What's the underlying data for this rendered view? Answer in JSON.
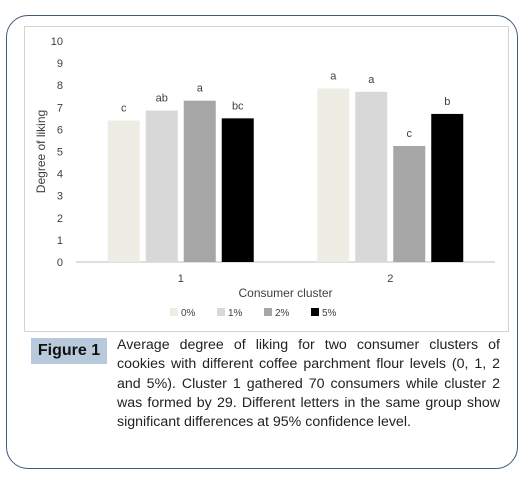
{
  "chart_data": {
    "type": "bar",
    "categories": [
      "1",
      "2"
    ],
    "series": [
      {
        "name": "0%",
        "color": "#eeede4",
        "values": [
          6.4,
          7.85
        ],
        "letters": [
          "c",
          "a"
        ]
      },
      {
        "name": "1%",
        "color": "#d8d8d8",
        "values": [
          6.85,
          7.7
        ],
        "letters": [
          "ab",
          "a"
        ]
      },
      {
        "name": "2%",
        "color": "#a6a6a6",
        "values": [
          7.3,
          5.25
        ],
        "letters": [
          "a",
          "c"
        ]
      },
      {
        "name": "5%",
        "color": "#000000",
        "values": [
          6.5,
          6.7
        ],
        "letters": [
          "bc",
          "b"
        ]
      }
    ],
    "xlabel": "Consumer cluster",
    "ylabel": "Degree of liking",
    "ylim": [
      0,
      10
    ],
    "yticks": [
      "0",
      "1",
      "2",
      "3",
      "4",
      "5",
      "6",
      "7",
      "8",
      "9",
      "10"
    ],
    "grid": false,
    "legend_position": "bottom"
  },
  "caption": {
    "label": "Figure 1",
    "text": "Average degree of liking for two consumer clusters of cookies with different coffee parchment flour levels (0, 1, 2 and 5%). Cluster 1 gathered 70 consumers while cluster 2 was formed by 29. Different letters in the same group show significant differences at 95% confidence level."
  }
}
